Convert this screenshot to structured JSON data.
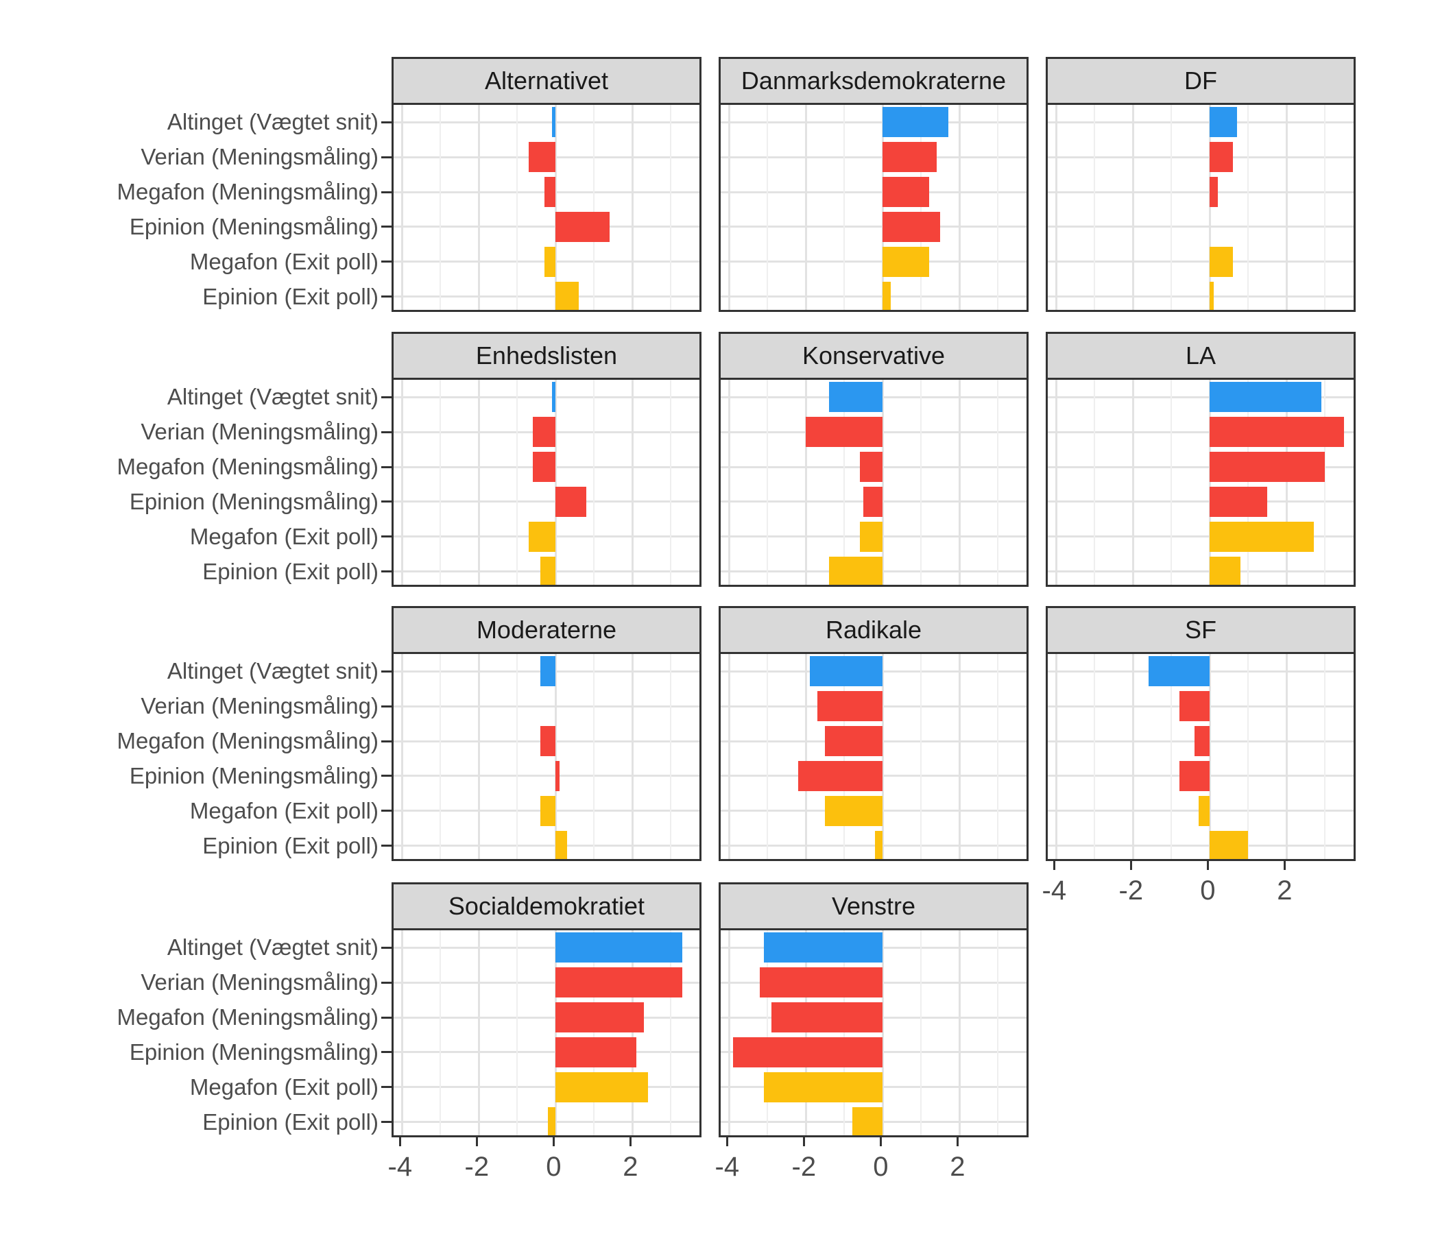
{
  "chart_data": {
    "type": "bar",
    "orientation": "horizontal",
    "title": "",
    "xlabel": "",
    "ylabel": "",
    "grid": true,
    "legend": "none",
    "xlim": [
      -4.22,
      3.85
    ],
    "x_ticks": [
      -4,
      -2,
      0,
      2
    ],
    "x_tick_labels": [
      "-4",
      "-2",
      "0",
      "2"
    ],
    "categories": [
      "Altinget (Vægtet snit)",
      "Verian (Meningsmåling)",
      "Megafon (Meningsmåling)",
      "Epinion (Meningsmåling)",
      "Megafon (Exit poll)",
      "Epinion (Exit poll)"
    ],
    "category_colors": [
      "#2b97f0",
      "#f4433a",
      "#f4433a",
      "#f4433a",
      "#fcc00d",
      "#fcc00d"
    ],
    "facets": [
      {
        "title": "Alternativet",
        "values": [
          -0.1,
          -0.7,
          -0.3,
          1.4,
          -0.3,
          0.6
        ]
      },
      {
        "title": "Danmarksdemokraterne",
        "values": [
          1.7,
          1.4,
          1.2,
          1.5,
          1.2,
          0.2
        ]
      },
      {
        "title": "DF",
        "values": [
          0.7,
          0.6,
          0.2,
          0.0,
          0.6,
          0.1
        ]
      },
      {
        "title": "Enhedslisten",
        "values": [
          -0.1,
          -0.6,
          -0.6,
          0.8,
          -0.7,
          -0.4
        ]
      },
      {
        "title": "Konservative",
        "values": [
          -1.4,
          -2.0,
          -0.6,
          -0.5,
          -0.6,
          -1.4
        ]
      },
      {
        "title": "LA",
        "values": [
          2.9,
          3.5,
          3.0,
          1.5,
          2.7,
          0.8
        ]
      },
      {
        "title": "Moderaterne",
        "values": [
          -0.4,
          0.0,
          -0.4,
          0.1,
          -0.4,
          0.3
        ]
      },
      {
        "title": "Radikale",
        "values": [
          -1.9,
          -1.7,
          -1.5,
          -2.2,
          -1.5,
          -0.2
        ]
      },
      {
        "title": "SF",
        "values": [
          -1.6,
          -0.8,
          -0.4,
          -0.8,
          -0.3,
          1.0
        ]
      },
      {
        "title": "Socialdemokratiet",
        "values": [
          3.3,
          3.3,
          2.3,
          2.1,
          2.4,
          -0.2
        ]
      },
      {
        "title": "Venstre",
        "values": [
          -3.1,
          -3.2,
          -2.9,
          -3.9,
          -3.1,
          -0.8
        ]
      }
    ],
    "colors": {
      "bar_blue": "#2b97f0",
      "bar_red": "#f4433a",
      "bar_yellow": "#fcc00d",
      "strip_background": "#d9d9d9",
      "panel_border": "#333333",
      "grid_major": "#e2e2e2",
      "grid_minor": "#efefef",
      "axis_text": "#4d4d4d",
      "strip_text": "#1a1a1a"
    }
  }
}
